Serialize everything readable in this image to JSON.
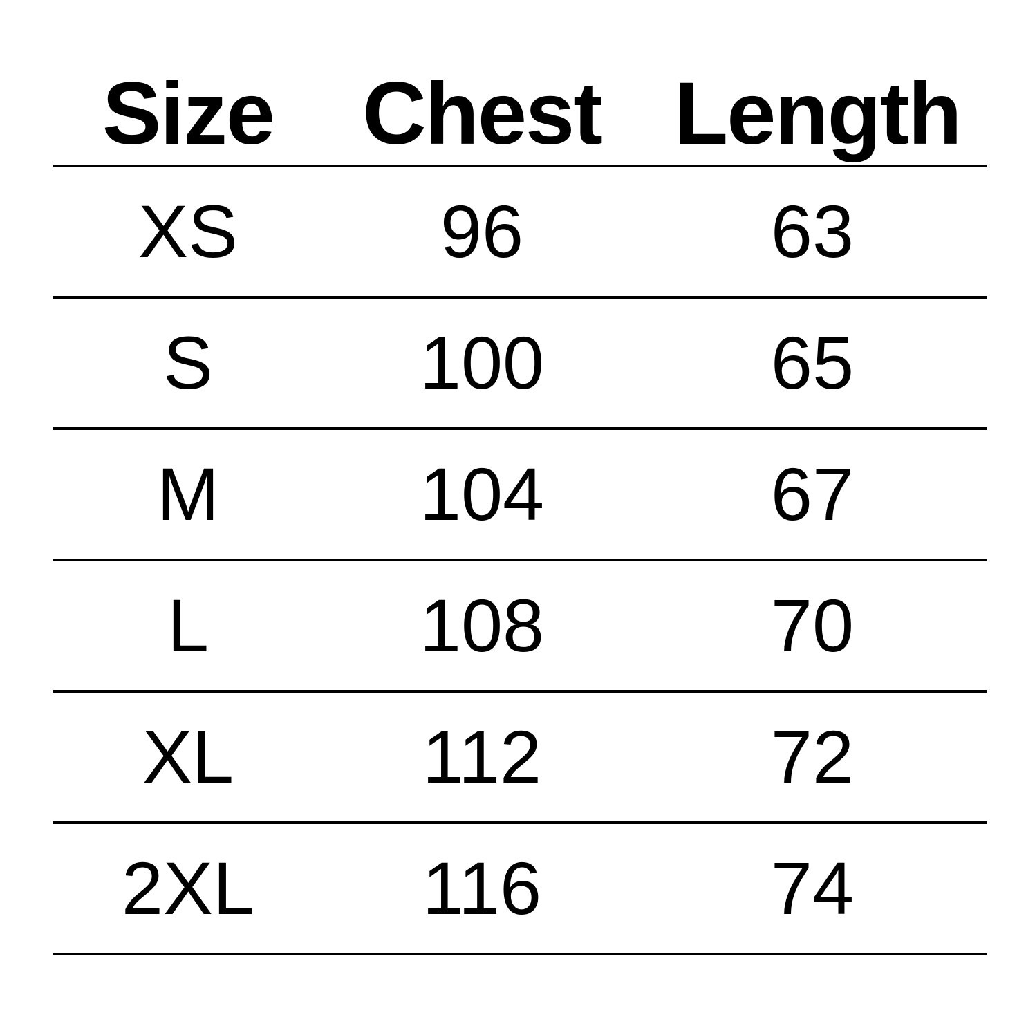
{
  "table": {
    "headers": [
      "Size",
      "Chest",
      "Length"
    ],
    "rows": [
      [
        "XS",
        "96",
        "63"
      ],
      [
        "S",
        "100",
        "65"
      ],
      [
        "M",
        "104",
        "67"
      ],
      [
        "L",
        "108",
        "70"
      ],
      [
        "XL",
        "112",
        "72"
      ],
      [
        "2XL",
        "116",
        "74"
      ]
    ]
  }
}
